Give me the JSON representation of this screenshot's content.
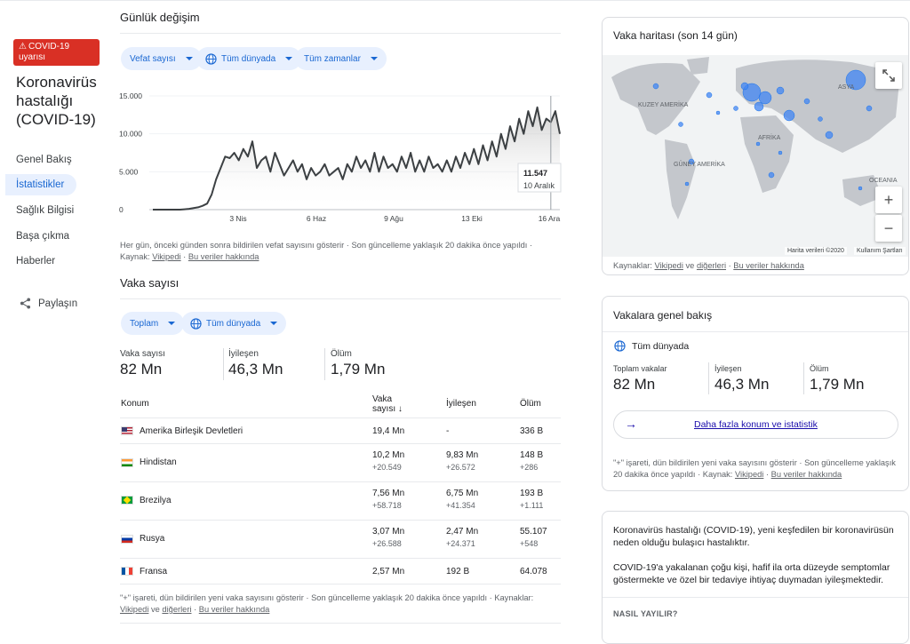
{
  "sidebar": {
    "alert": "COVID-19 uyarısı",
    "title": "Koronavirüs hastalığı (COVID-19)",
    "items": [
      {
        "label": "Genel Bakış"
      },
      {
        "label": "İstatistikler"
      },
      {
        "label": "Sağlık Bilgisi"
      },
      {
        "label": "Başa çıkma"
      },
      {
        "label": "Haberler"
      }
    ],
    "share": "Paylaşın"
  },
  "daily": {
    "title": "Günlük değişim",
    "chips": [
      "Vefat sayısı",
      "Tüm dünyada",
      "Tüm zamanlar"
    ],
    "note": "Her gün, önceki günden sonra bildirilen vefat sayısını gösterir · Son güncelleme yaklaşık 20 dakika önce yapıldı ·",
    "source_label": "Kaynak:",
    "source_link": "Vikipedi",
    "about_link": "Bu veriler hakkında"
  },
  "chart_data": {
    "type": "line",
    "title": "",
    "xlabel": "",
    "ylabel": "",
    "ylim": [
      0,
      15000
    ],
    "y_ticks": [
      "15.000",
      "10.000",
      "5.000",
      "0"
    ],
    "x_ticks": [
      "3 Nis",
      "6 Haz",
      "9 Ağu",
      "13 Eki",
      "16 Ara"
    ],
    "tooltip": {
      "value": "11.547",
      "date": "10 Aralık"
    },
    "series": [
      {
        "values": [
          0,
          0,
          0,
          0,
          0,
          0,
          0,
          50,
          100,
          200,
          300,
          500,
          800,
          2000,
          4000,
          5500,
          7000,
          6800,
          7500,
          6500,
          8000,
          7000,
          9000,
          5500,
          6500,
          7000,
          5000,
          7500,
          6000,
          4500,
          5500,
          6500,
          5000,
          6000,
          4000,
          5500,
          4500,
          5000,
          6000,
          4500,
          5000,
          5500,
          4000,
          6000,
          5000,
          7000,
          5500,
          6500,
          5000,
          7500,
          5000,
          7000,
          5500,
          6000,
          5000,
          7000,
          5500,
          7500,
          5000,
          6500,
          5000,
          7000,
          5500,
          6000,
          5000,
          6500,
          5000,
          7000,
          5500,
          7500,
          6000,
          8000,
          6000,
          8500,
          6500,
          9000,
          7000,
          10000,
          8000,
          11000,
          9000,
          12000,
          10000,
          13000,
          11000,
          13500,
          10500,
          12000,
          11547,
          13000,
          10000
        ]
      }
    ]
  },
  "cases": {
    "title": "Vaka sayısı",
    "chips": [
      "Toplam",
      "Tüm dünyada"
    ],
    "summary": [
      {
        "label": "Vaka sayısı",
        "value": "82 Mn"
      },
      {
        "label": "İyileşen",
        "value": "46,3 Mn"
      },
      {
        "label": "Ölüm",
        "value": "1,79 Mn"
      }
    ],
    "headers": {
      "location": "Konum",
      "cases_line1": "Vaka",
      "cases_line2": "sayısı ↓",
      "recovered": "İyileşen",
      "deaths": "Ölüm"
    },
    "rows": [
      {
        "name": "Amerika Birleşik Devletleri",
        "cases": "19,4 Mn",
        "cases_new": "",
        "recovered": "-",
        "recovered_new": "",
        "deaths": "336 B",
        "deaths_new": ""
      },
      {
        "name": "Hindistan",
        "cases": "10,2 Mn",
        "cases_new": "+20.549",
        "recovered": "9,83 Mn",
        "recovered_new": "+26.572",
        "deaths": "148 B",
        "deaths_new": "+286"
      },
      {
        "name": "Brezilya",
        "cases": "7,56 Mn",
        "cases_new": "+58.718",
        "recovered": "6,75 Mn",
        "recovered_new": "+41.354",
        "deaths": "193 B",
        "deaths_new": "+1.111"
      },
      {
        "name": "Rusya",
        "cases": "3,07 Mn",
        "cases_new": "+26.588",
        "recovered": "2,47 Mn",
        "recovered_new": "+24.371",
        "deaths": "55.107",
        "deaths_new": "+548"
      },
      {
        "name": "Fransa",
        "cases": "2,57 Mn",
        "cases_new": "",
        "recovered": "192 B",
        "recovered_new": "",
        "deaths": "64.078",
        "deaths_new": ""
      }
    ],
    "note": "\"+\" işareti, dün bildirilen yeni vaka sayısını gösterir · Son güncelleme yaklaşık 20 dakika önce yapıldı ·",
    "source_label": "Kaynaklar:",
    "source_link": "Vikipedi",
    "and": "ve",
    "others_link": "diğerleri",
    "about_link": "Bu veriler hakkında"
  },
  "map": {
    "title": "Vaka haritası (son 14 gün)",
    "labels": [
      "KUZEY AMERİKA",
      "GÜNEY AMERİKA",
      "AFRİKA",
      "ASYA",
      "OCEANIA"
    ],
    "credit": "Harita verileri ©2020",
    "terms": "Kullanım Şartları",
    "zoom_in": "+",
    "zoom_out": "−",
    "sources_label": "Kaynaklar:",
    "source_link": "Vikipedi",
    "and": "ve",
    "others_link": "diğerleri",
    "about_link": "Bu veriler hakkında"
  },
  "overview": {
    "title": "Vakalara genel bakış",
    "scope": "Tüm dünyada",
    "stats": [
      {
        "label": "Toplam vakalar",
        "value": "82 Mn"
      },
      {
        "label": "İyileşen",
        "value": "46,3 Mn"
      },
      {
        "label": "Ölüm",
        "value": "1,79 Mn"
      }
    ],
    "more_button": "Daha fazla konum ve istatistik",
    "note1": "\"+\" işareti, dün bildirilen yeni vaka sayısını gösterir · Son güncelleme yaklaşık",
    "note2": "20 dakika önce yapıldı ·",
    "source_label": "Kaynak:",
    "source_link": "Vikipedi",
    "about_link": "Bu veriler hakkında"
  },
  "about": {
    "p1": "Koronavirüs hastalığı (COVID-19), yeni keşfedilen bir koronavirüsün neden olduğu bulaşıcı hastalıktır.",
    "p2": "COVID-19'a yakalanan çoğu kişi, hafif ila orta düzeyde semptomlar göstermekte ve özel bir tedaviye ihtiyaç duymadan iyileşmektedir.",
    "how": "NASIL YAYILIR?"
  }
}
